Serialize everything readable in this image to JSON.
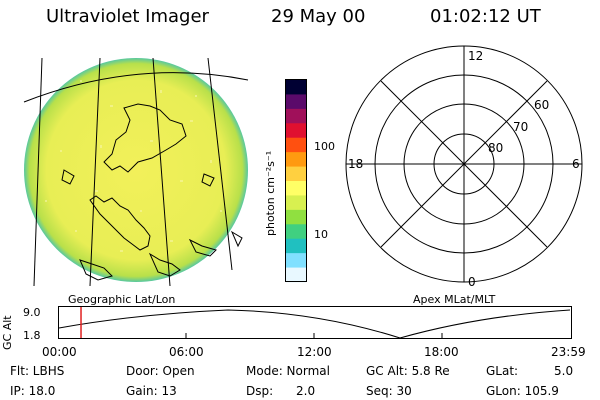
{
  "header": {
    "title": "Ultraviolet Imager",
    "date": "29 May 00",
    "time": "01:02:12 UT"
  },
  "colorbar": {
    "label": "photon cm⁻²s⁻¹",
    "ticks": [
      "100",
      "10"
    ],
    "colors": [
      "#000033",
      "#5a0a6a",
      "#a0105a",
      "#e01030",
      "#ff5010",
      "#ff9a10",
      "#ffd040",
      "#ffff66",
      "#d8f050",
      "#90e040",
      "#40d080",
      "#20c0c0",
      "#80e0ff",
      "#e8f8ff"
    ]
  },
  "polar": {
    "labels": {
      "top": "12",
      "left": "18",
      "right": "6",
      "bottom": "0"
    },
    "rings": [
      "60",
      "70",
      "80"
    ]
  },
  "map_label": "Geographic Lat/Lon",
  "polar_label": "Apex MLat/MLT",
  "orbit": {
    "ylabel": "GC Alt",
    "ymax": "9.0",
    "ymin": "1.8",
    "x_ticks": [
      "00:00",
      "06:00",
      "12:00",
      "18:00",
      "23:59"
    ],
    "current_time_fraction": 0.043
  },
  "info": {
    "flt": "Flt: LBHS",
    "ip": "IP: 18.0",
    "door": "Door: Open",
    "gain": "Gain: 13",
    "mode": "Mode: Normal",
    "dsp": "Dsp:",
    "dsp_val": "2.0",
    "gcalt": "GC Alt: 5.8 Re",
    "seq": "Seq: 30",
    "glat": "GLat:",
    "glat_val": "5.0",
    "glon": "GLon: 105.9"
  }
}
